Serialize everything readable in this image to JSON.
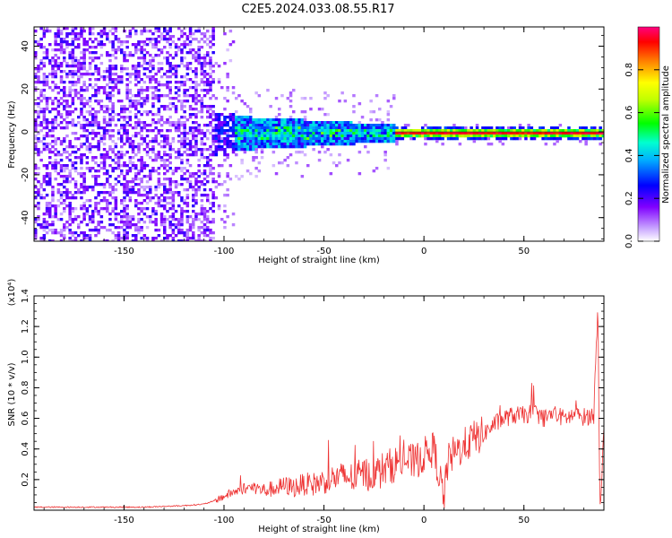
{
  "title": "C2E5.2024.033.08.55.R17",
  "colorbar": {
    "label": "Normalized spectral amplitude",
    "ticks": [
      "0.0",
      "0.2",
      "0.4",
      "0.6",
      "0.8"
    ],
    "tick_values": [
      0.0,
      0.2,
      0.4,
      0.6,
      0.8
    ],
    "range": [
      0,
      1
    ],
    "colors": [
      "#ffffff",
      "#8000ff",
      "#0000ff",
      "#00e5ff",
      "#00ff00",
      "#ffff00",
      "#ff8000",
      "#ff0000",
      "#ff0080"
    ]
  },
  "chart_data": [
    {
      "type": "heatmap",
      "xlabel": "Height of straight line (km)",
      "ylabel": "Frequency (Hz)",
      "xlim": [
        -195,
        90
      ],
      "ylim": [
        -51,
        49
      ],
      "xticks": [
        -150,
        -100,
        -50,
        0,
        50
      ],
      "yticks": [
        -40,
        -20,
        0,
        20,
        40
      ],
      "grid": false,
      "colormap": "rainbow (white to purple to red/magenta)",
      "description_values": {
        "dominant_frequency_hz": 0,
        "strong_signal_from_km": -15,
        "noise_region_to_km": -105
      }
    },
    {
      "type": "line",
      "xlabel": "Height of straight line (km)",
      "ylabel": "SNR (10 * v/v)",
      "yscale_label": "(x10⁴)",
      "xlim": [
        -195,
        90
      ],
      "ylim": [
        0,
        1.4
      ],
      "xticks": [
        -150,
        -100,
        -50,
        0,
        50
      ],
      "yticks": [
        "0.2",
        "0.4",
        "0.6",
        "0.8",
        "1.0",
        "1.2",
        "1.4"
      ],
      "ytick_values": [
        0.2,
        0.4,
        0.6,
        0.8,
        1.0,
        1.2,
        1.4
      ],
      "grid": false,
      "color": "#ee3333",
      "series": [
        {
          "x": [
            -195,
            -180,
            -160,
            -140,
            -130,
            -120,
            -115,
            -110,
            -105,
            -100,
            -95,
            -90,
            -85,
            -80,
            -75,
            -70,
            -65,
            -60,
            -55,
            -50,
            -45,
            -40,
            -35,
            -30,
            -25,
            -20,
            -15,
            -10,
            -5,
            0,
            5,
            10,
            12,
            15,
            20,
            25,
            30,
            35,
            40,
            45,
            50,
            55,
            60,
            65,
            70,
            75,
            80,
            85,
            87,
            88,
            90
          ],
          "y": [
            0.02,
            0.02,
            0.02,
            0.02,
            0.025,
            0.03,
            0.035,
            0.04,
            0.06,
            0.09,
            0.12,
            0.14,
            0.15,
            0.13,
            0.14,
            0.16,
            0.15,
            0.17,
            0.17,
            0.19,
            0.21,
            0.22,
            0.21,
            0.24,
            0.23,
            0.27,
            0.3,
            0.33,
            0.31,
            0.36,
            0.4,
            0.08,
            0.32,
            0.37,
            0.42,
            0.47,
            0.5,
            0.56,
            0.6,
            0.62,
            0.62,
            0.64,
            0.6,
            0.63,
            0.6,
            0.62,
            0.61,
            0.62,
            1.38,
            0.02,
            0.5
          ]
        }
      ]
    }
  ]
}
